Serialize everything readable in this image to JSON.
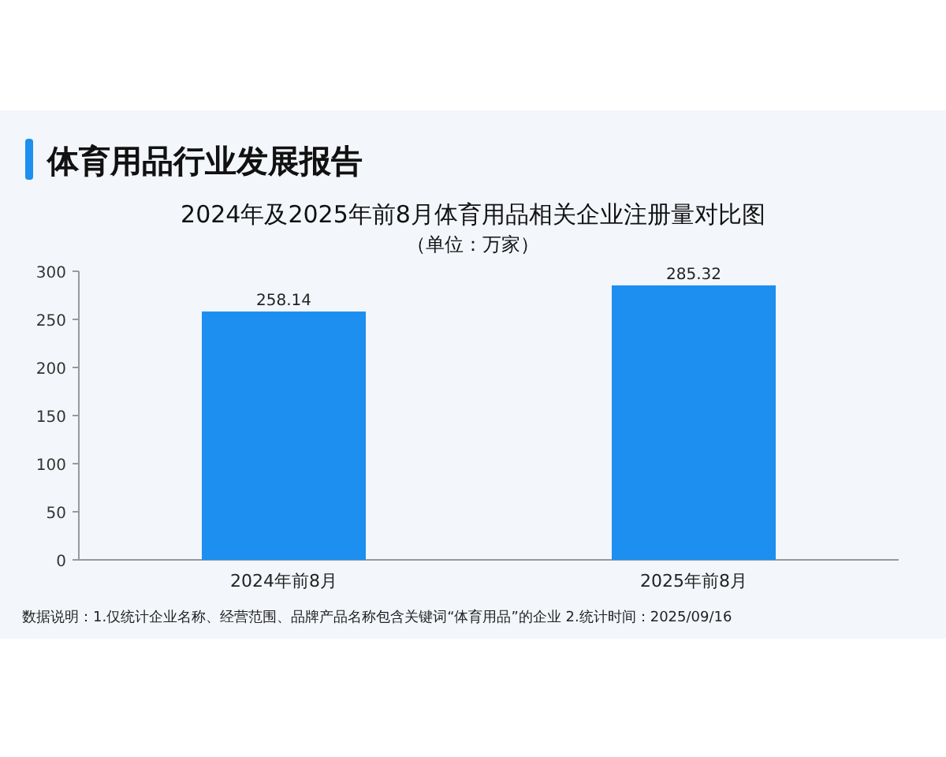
{
  "chart_data": {
    "type": "bar",
    "title": "2024年及2025年前8月体育用品相关企业注册量对比图",
    "subtitle": "（单位：万家）",
    "annotations": [
      "体育用品行业发展报告",
      "数据说明：1.仅统计企业名称、经营范围、品牌产品名称包含关键词“体育用品”的企业 2.统计时间：2025/09/16"
    ],
    "categories": [
      "2024年前8月",
      "2025年前8月"
    ],
    "values": [
      258.14,
      285.32
    ],
    "color": "#1c8ff0",
    "ylim": [
      0,
      300
    ],
    "yticks": [
      0,
      50,
      100,
      150,
      200,
      250,
      300
    ],
    "data_labels": true
  }
}
